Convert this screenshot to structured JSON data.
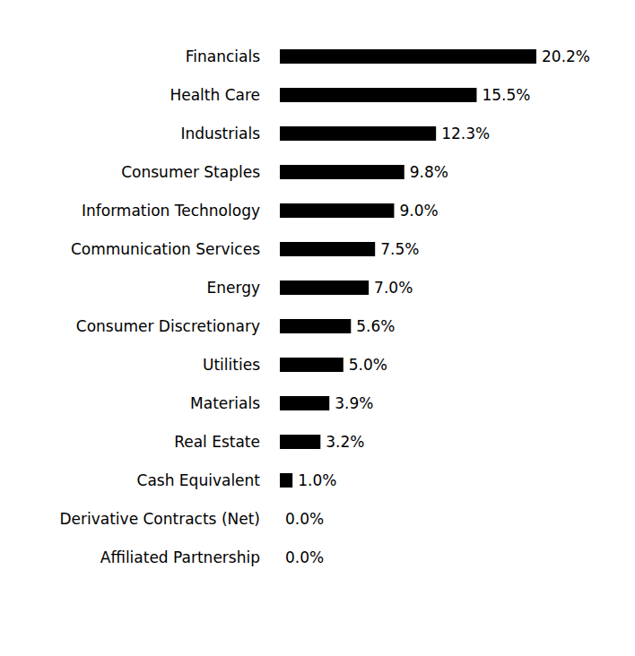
{
  "chart_data": {
    "type": "bar",
    "orientation": "horizontal",
    "categories": [
      "Financials",
      "Health Care",
      "Industrials",
      "Consumer Staples",
      "Information Technology",
      "Communication Services",
      "Energy",
      "Consumer Discretionary",
      "Utilities",
      "Materials",
      "Real Estate",
      "Cash Equivalent",
      "Derivative Contracts (Net)",
      "Affiliated Partnership"
    ],
    "values": [
      20.2,
      15.5,
      12.3,
      9.8,
      9.0,
      7.5,
      7.0,
      5.6,
      5.0,
      3.9,
      3.2,
      1.0,
      0.0,
      0.0
    ],
    "value_labels": [
      "20.2%",
      "15.5%",
      "12.3%",
      "9.8%",
      "9.0%",
      "7.5%",
      "7.0%",
      "5.6%",
      "5.0%",
      "3.9%",
      "3.2%",
      "1.0%",
      "0.0%",
      "0.0%"
    ],
    "color": "#000000",
    "data_labels": true,
    "tick_labels": "y"
  }
}
